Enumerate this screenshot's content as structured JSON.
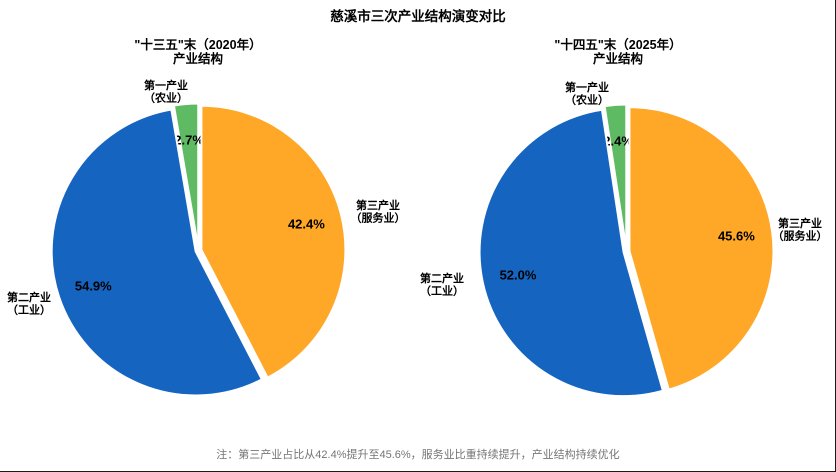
{
  "page": {
    "title": "慈溪市三次产业结构演变对比",
    "note": "注：第三产业占比从42.4%提升至45.6%，服务业比重持续提升，产业结构持续优化"
  },
  "chart_data": [
    {
      "type": "pie",
      "subtitle_lines": [
        "\"十三五\"末（2020年）",
        "产业结构"
      ],
      "start_angle": 90,
      "direction": "counterclockwise",
      "pct_distance": 0.75,
      "slices": [
        {
          "label": "第一产业",
          "sublabel": "（农业）",
          "value": 2.7,
          "pct_label": "2.7%",
          "color": "#5fba64"
        },
        {
          "label": "第二产业",
          "sublabel": "（工业）",
          "value": 54.9,
          "pct_label": "54.9%",
          "color": "#1565c0"
        },
        {
          "label": "第三产业",
          "sublabel": "（服务业）",
          "value": 42.4,
          "pct_label": "42.4%",
          "color": "#ffa726"
        }
      ]
    },
    {
      "type": "pie",
      "subtitle_lines": [
        "\"十四五\"末（2025年）",
        "产业结构"
      ],
      "start_angle": 90,
      "direction": "counterclockwise",
      "pct_distance": 0.75,
      "slices": [
        {
          "label": "第一产业",
          "sublabel": "（农业）",
          "value": 2.4,
          "pct_label": "2.4%",
          "color": "#5fba64"
        },
        {
          "label": "第二产业",
          "sublabel": "（工业）",
          "value": 52.0,
          "pct_label": "52.0%",
          "color": "#1565c0"
        },
        {
          "label": "第三产业",
          "sublabel": "（服务业）",
          "value": 45.6,
          "pct_label": "45.6%",
          "color": "#ffa726"
        }
      ]
    }
  ]
}
